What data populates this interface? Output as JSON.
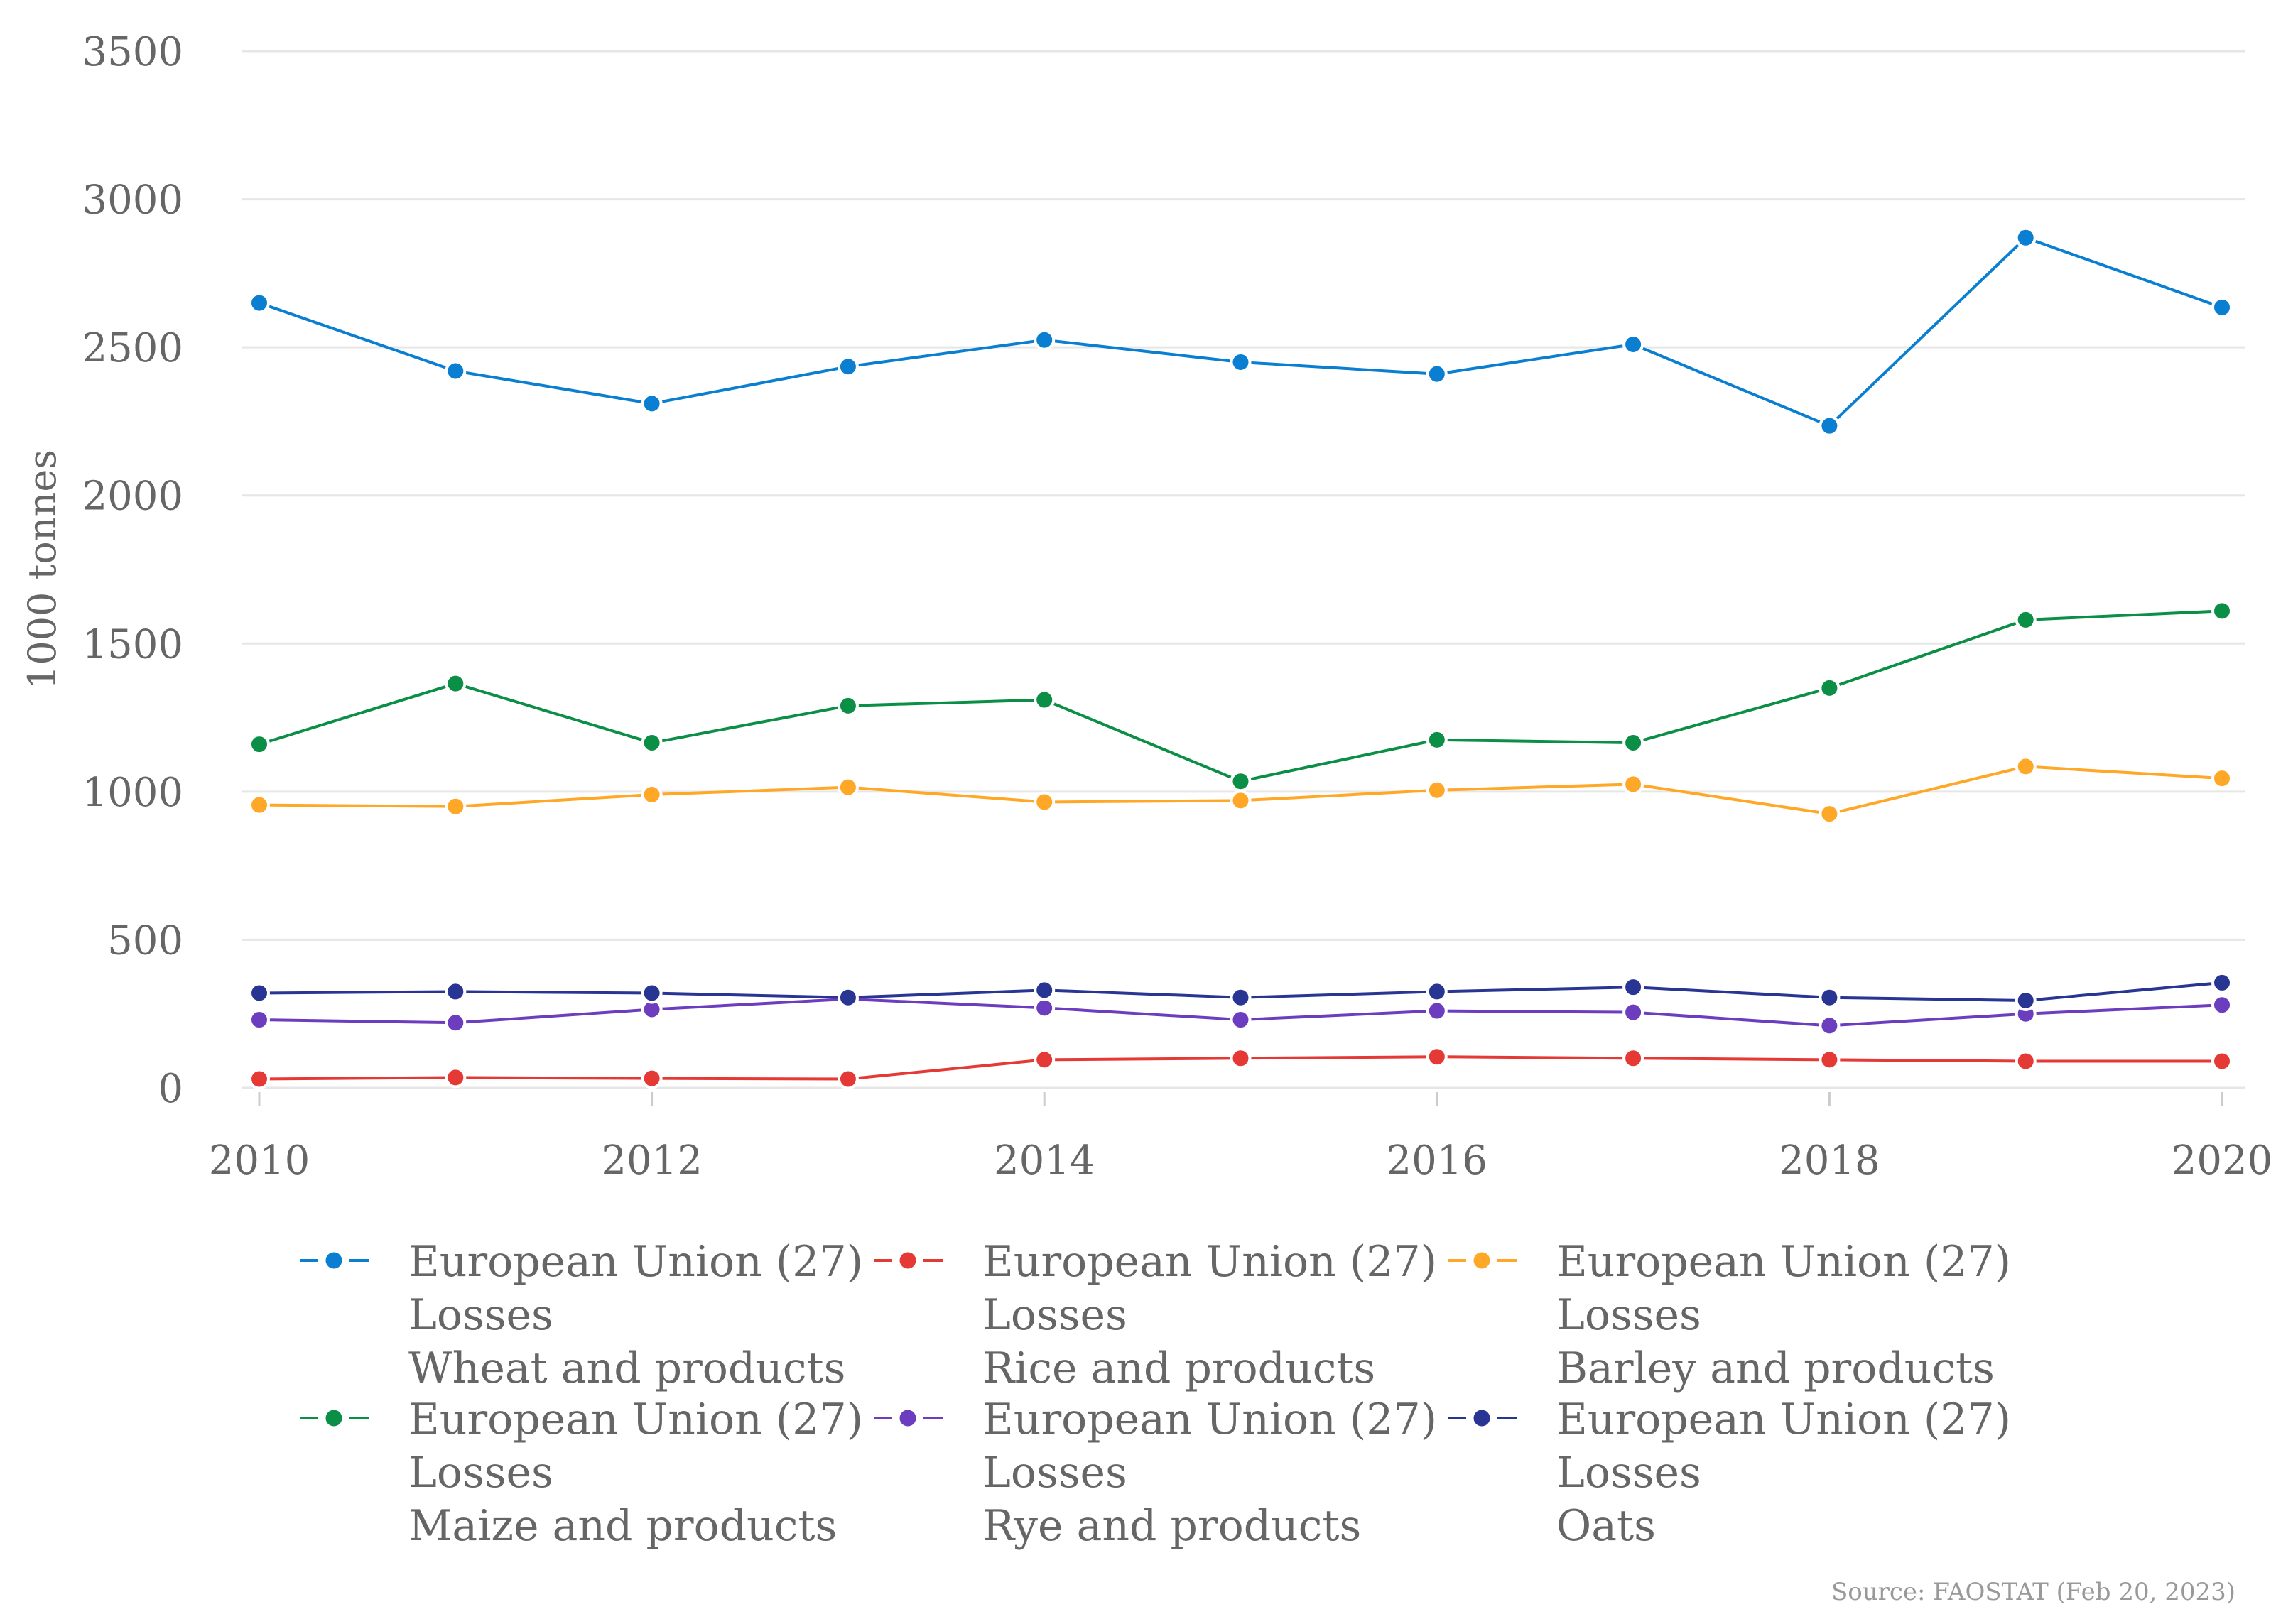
{
  "chart_data": {
    "type": "line",
    "x": [
      2010,
      2011,
      2012,
      2013,
      2014,
      2015,
      2016,
      2017,
      2018,
      2019,
      2020
    ],
    "xticks": [
      2010,
      2012,
      2014,
      2016,
      2018,
      2020
    ],
    "ylabel": "1000 tonnes",
    "ylim": [
      0,
      3500
    ],
    "yticks": [
      0,
      500,
      1000,
      1500,
      2000,
      2500,
      3000,
      3500
    ],
    "grid": true,
    "legend_position": "bottom",
    "series": [
      {
        "name": [
          "European Union (27)",
          "Losses",
          "Wheat and products"
        ],
        "color": "#0a7fd2",
        "values": [
          2650,
          2420,
          2310,
          2435,
          2525,
          2450,
          2410,
          2510,
          2235,
          2870,
          2635
        ]
      },
      {
        "name": [
          "European Union (27)",
          "Losses",
          "Rice and products"
        ],
        "color": "#e53935",
        "values": [
          30,
          35,
          32,
          30,
          95,
          100,
          105,
          100,
          95,
          90,
          90
        ]
      },
      {
        "name": [
          "European Union (27)",
          "Losses",
          "Barley and products"
        ],
        "color": "#ffa726",
        "values": [
          955,
          950,
          990,
          1015,
          965,
          970,
          1005,
          1025,
          925,
          1085,
          1045
        ]
      },
      {
        "name": [
          "European Union (27)",
          "Losses",
          "Maize and products"
        ],
        "color": "#0b8e45",
        "values": [
          1160,
          1365,
          1165,
          1290,
          1310,
          1035,
          1175,
          1165,
          1350,
          1580,
          1610
        ]
      },
      {
        "name": [
          "European Union (27)",
          "Losses",
          "Rye and products"
        ],
        "color": "#6c3ebf",
        "values": [
          230,
          220,
          265,
          300,
          270,
          230,
          260,
          255,
          210,
          250,
          280
        ]
      },
      {
        "name": [
          "European Union (27)",
          "Losses",
          "Oats"
        ],
        "color": "#283593",
        "values": [
          320,
          325,
          320,
          305,
          330,
          305,
          325,
          340,
          305,
          295,
          355
        ]
      }
    ]
  },
  "source": "Source: FAOSTAT (Feb 20, 2023)"
}
